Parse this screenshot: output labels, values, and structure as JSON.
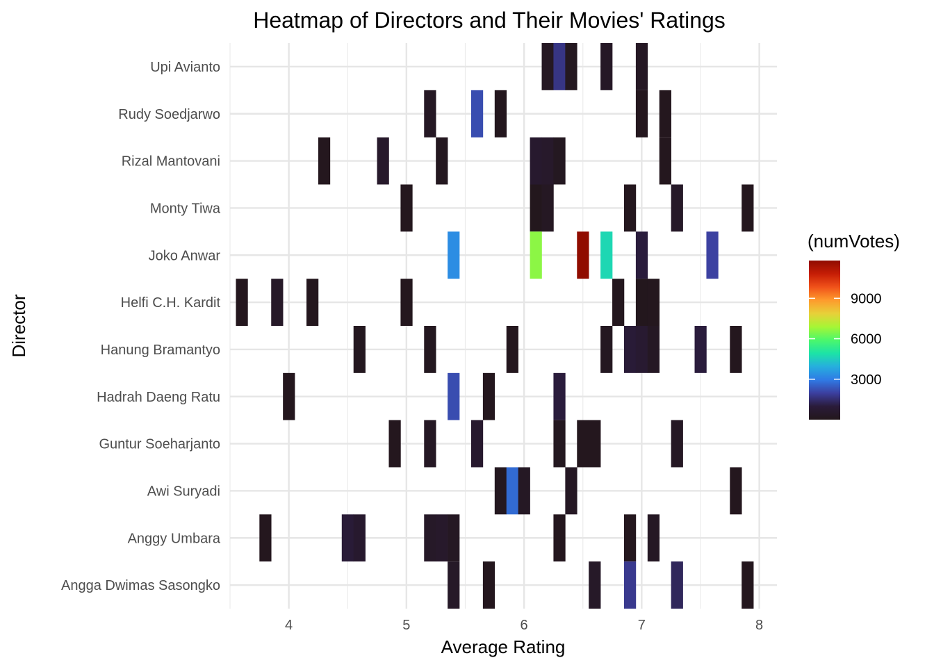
{
  "chart_data": {
    "type": "heatmap",
    "title": "Heatmap of Directors and Their Movies' Ratings",
    "xlabel": "Average Rating",
    "ylabel": "Director",
    "xlim": [
      3.5,
      8.15
    ],
    "x_ticks": [
      4,
      5,
      6,
      7,
      8
    ],
    "tile_width": 0.1,
    "grid": true,
    "directors": [
      "Angga Dwimas Sasongko",
      "Anggy Umbara",
      "Awi Suryadi",
      "Guntur Soeharjanto",
      "Hadrah Daeng Ratu",
      "Hanung Bramantyo",
      "Helfi C.H. Kardit",
      "Joko Anwar",
      "Monty Tiwa",
      "Rizal Mantovani",
      "Rudy Soedjarwo",
      "Upi Avianto"
    ],
    "legend": {
      "title": "(numVotes)",
      "ticks": [
        3000,
        6000,
        9000
      ],
      "min": 0,
      "max": 11800,
      "position": "right",
      "colors": [
        "#23171b",
        "#2a1b3a",
        "#3c3f9f",
        "#2f7ae5",
        "#26aede",
        "#1ce3a7",
        "#4cf76b",
        "#a6f635",
        "#e7d139",
        "#fe9b2d",
        "#f0521a",
        "#c61d05",
        "#900c00"
      ]
    },
    "cells": [
      {
        "director": "Upi Avianto",
        "rating": 6.2,
        "votes": 250
      },
      {
        "director": "Upi Avianto",
        "rating": 6.3,
        "votes": 1700
      },
      {
        "director": "Upi Avianto",
        "rating": 6.4,
        "votes": 150
      },
      {
        "director": "Upi Avianto",
        "rating": 6.7,
        "votes": 350
      },
      {
        "director": "Upi Avianto",
        "rating": 7.0,
        "votes": 300
      },
      {
        "director": "Rudy Soedjarwo",
        "rating": 5.2,
        "votes": 300
      },
      {
        "director": "Rudy Soedjarwo",
        "rating": 5.6,
        "votes": 2200
      },
      {
        "director": "Rudy Soedjarwo",
        "rating": 5.8,
        "votes": 80
      },
      {
        "director": "Rudy Soedjarwo",
        "rating": 7.0,
        "votes": 80
      },
      {
        "director": "Rudy Soedjarwo",
        "rating": 7.2,
        "votes": 80
      },
      {
        "director": "Rizal Mantovani",
        "rating": 4.3,
        "votes": 80
      },
      {
        "director": "Rizal Mantovani",
        "rating": 4.8,
        "votes": 500
      },
      {
        "director": "Rizal Mantovani",
        "rating": 5.3,
        "votes": 150
      },
      {
        "director": "Rizal Mantovani",
        "rating": 6.1,
        "votes": 600
      },
      {
        "director": "Rizal Mantovani",
        "rating": 6.2,
        "votes": 500
      },
      {
        "director": "Rizal Mantovani",
        "rating": 6.3,
        "votes": 200
      },
      {
        "director": "Rizal Mantovani",
        "rating": 7.2,
        "votes": 80
      },
      {
        "director": "Monty Tiwa",
        "rating": 5.0,
        "votes": 80
      },
      {
        "director": "Monty Tiwa",
        "rating": 6.1,
        "votes": 60
      },
      {
        "director": "Monty Tiwa",
        "rating": 6.2,
        "votes": 250
      },
      {
        "director": "Monty Tiwa",
        "rating": 6.9,
        "votes": 100
      },
      {
        "director": "Monty Tiwa",
        "rating": 7.3,
        "votes": 400
      },
      {
        "director": "Monty Tiwa",
        "rating": 7.9,
        "votes": 80
      },
      {
        "director": "Joko Anwar",
        "rating": 5.4,
        "votes": 3300
      },
      {
        "director": "Joko Anwar",
        "rating": 6.1,
        "votes": 6600
      },
      {
        "director": "Joko Anwar",
        "rating": 6.5,
        "votes": 11800
      },
      {
        "director": "Joko Anwar",
        "rating": 6.7,
        "votes": 4700
      },
      {
        "director": "Joko Anwar",
        "rating": 7.0,
        "votes": 1000
      },
      {
        "director": "Joko Anwar",
        "rating": 7.6,
        "votes": 2000
      },
      {
        "director": "Helfi C.H. Kardit",
        "rating": 3.6,
        "votes": 80
      },
      {
        "director": "Helfi C.H. Kardit",
        "rating": 3.9,
        "votes": 400
      },
      {
        "director": "Helfi C.H. Kardit",
        "rating": 4.2,
        "votes": 80
      },
      {
        "director": "Helfi C.H. Kardit",
        "rating": 5.0,
        "votes": 80
      },
      {
        "director": "Helfi C.H. Kardit",
        "rating": 6.8,
        "votes": 80
      },
      {
        "director": "Helfi C.H. Kardit",
        "rating": 7.0,
        "votes": 60
      },
      {
        "director": "Helfi C.H. Kardit",
        "rating": 7.1,
        "votes": 80
      },
      {
        "director": "Hanung Bramantyo",
        "rating": 4.6,
        "votes": 150
      },
      {
        "director": "Hanung Bramantyo",
        "rating": 5.2,
        "votes": 150
      },
      {
        "director": "Hanung Bramantyo",
        "rating": 5.9,
        "votes": 80
      },
      {
        "director": "Hanung Bramantyo",
        "rating": 6.7,
        "votes": 200
      },
      {
        "director": "Hanung Bramantyo",
        "rating": 6.9,
        "votes": 900
      },
      {
        "director": "Hanung Bramantyo",
        "rating": 7.0,
        "votes": 700
      },
      {
        "director": "Hanung Bramantyo",
        "rating": 7.1,
        "votes": 300
      },
      {
        "director": "Hanung Bramantyo",
        "rating": 7.5,
        "votes": 1000
      },
      {
        "director": "Hanung Bramantyo",
        "rating": 7.8,
        "votes": 100
      },
      {
        "director": "Hadrah Daeng Ratu",
        "rating": 4.0,
        "votes": 80
      },
      {
        "director": "Hadrah Daeng Ratu",
        "rating": 5.4,
        "votes": 2200
      },
      {
        "director": "Hadrah Daeng Ratu",
        "rating": 5.7,
        "votes": 80
      },
      {
        "director": "Hadrah Daeng Ratu",
        "rating": 6.3,
        "votes": 1000
      },
      {
        "director": "Guntur Soeharjanto",
        "rating": 4.9,
        "votes": 80
      },
      {
        "director": "Guntur Soeharjanto",
        "rating": 5.2,
        "votes": 300
      },
      {
        "director": "Guntur Soeharjanto",
        "rating": 5.6,
        "votes": 600
      },
      {
        "director": "Guntur Soeharjanto",
        "rating": 6.3,
        "votes": 150
      },
      {
        "director": "Guntur Soeharjanto",
        "rating": 6.5,
        "votes": 80
      },
      {
        "director": "Guntur Soeharjanto",
        "rating": 6.6,
        "votes": 80
      },
      {
        "director": "Guntur Soeharjanto",
        "rating": 7.3,
        "votes": 300
      },
      {
        "director": "Awi Suryadi",
        "rating": 5.8,
        "votes": 150
      },
      {
        "director": "Awi Suryadi",
        "rating": 5.9,
        "votes": 2700
      },
      {
        "director": "Awi Suryadi",
        "rating": 6.0,
        "votes": 300
      },
      {
        "director": "Awi Suryadi",
        "rating": 6.4,
        "votes": 300
      },
      {
        "director": "Awi Suryadi",
        "rating": 7.8,
        "votes": 80
      },
      {
        "director": "Anggy Umbara",
        "rating": 3.8,
        "votes": 80
      },
      {
        "director": "Anggy Umbara",
        "rating": 4.5,
        "votes": 900
      },
      {
        "director": "Anggy Umbara",
        "rating": 4.6,
        "votes": 600
      },
      {
        "director": "Anggy Umbara",
        "rating": 5.2,
        "votes": 400
      },
      {
        "director": "Anggy Umbara",
        "rating": 5.3,
        "votes": 500
      },
      {
        "director": "Anggy Umbara",
        "rating": 5.4,
        "votes": 250
      },
      {
        "director": "Anggy Umbara",
        "rating": 6.3,
        "votes": 80
      },
      {
        "director": "Anggy Umbara",
        "rating": 6.9,
        "votes": 80
      },
      {
        "director": "Anggy Umbara",
        "rating": 7.1,
        "votes": 300
      },
      {
        "director": "Angga Dwimas Sasongko",
        "rating": 5.4,
        "votes": 400
      },
      {
        "director": "Angga Dwimas Sasongko",
        "rating": 5.7,
        "votes": 80
      },
      {
        "director": "Angga Dwimas Sasongko",
        "rating": 6.6,
        "votes": 400
      },
      {
        "director": "Angga Dwimas Sasongko",
        "rating": 6.9,
        "votes": 1800
      },
      {
        "director": "Angga Dwimas Sasongko",
        "rating": 7.3,
        "votes": 1300
      },
      {
        "director": "Angga Dwimas Sasongko",
        "rating": 7.9,
        "votes": 80
      }
    ]
  }
}
